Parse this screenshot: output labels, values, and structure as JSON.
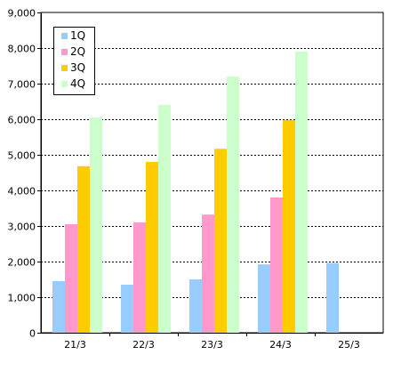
{
  "chart_data": {
    "type": "bar",
    "title": "",
    "xlabel": "",
    "ylabel": "",
    "categories": [
      "21/3",
      "22/3",
      "23/3",
      "24/3",
      "25/3"
    ],
    "series": [
      {
        "name": "1Q",
        "color": "#99ccff",
        "values": [
          1450,
          1350,
          1500,
          1920,
          1960
        ]
      },
      {
        "name": "2Q",
        "color": "#ff99cc",
        "values": [
          3050,
          3100,
          3320,
          3800,
          null
        ]
      },
      {
        "name": "3Q",
        "color": "#ffcc00",
        "values": [
          4680,
          4800,
          5170,
          5980,
          null
        ]
      },
      {
        "name": "4Q",
        "color": "#ccffcc",
        "values": [
          6050,
          6400,
          7200,
          7900,
          null
        ]
      }
    ],
    "ylim": [
      0,
      9000
    ],
    "y_ticks": [
      0,
      1000,
      2000,
      3000,
      4000,
      5000,
      6000,
      7000,
      8000,
      9000
    ],
    "y_tick_labels": [
      "0",
      "1,000",
      "2,000",
      "3,000",
      "4,000",
      "5,000",
      "6,000",
      "7,000",
      "8,000",
      "9,000"
    ],
    "grid": true,
    "legend_placement": "top-left"
  }
}
